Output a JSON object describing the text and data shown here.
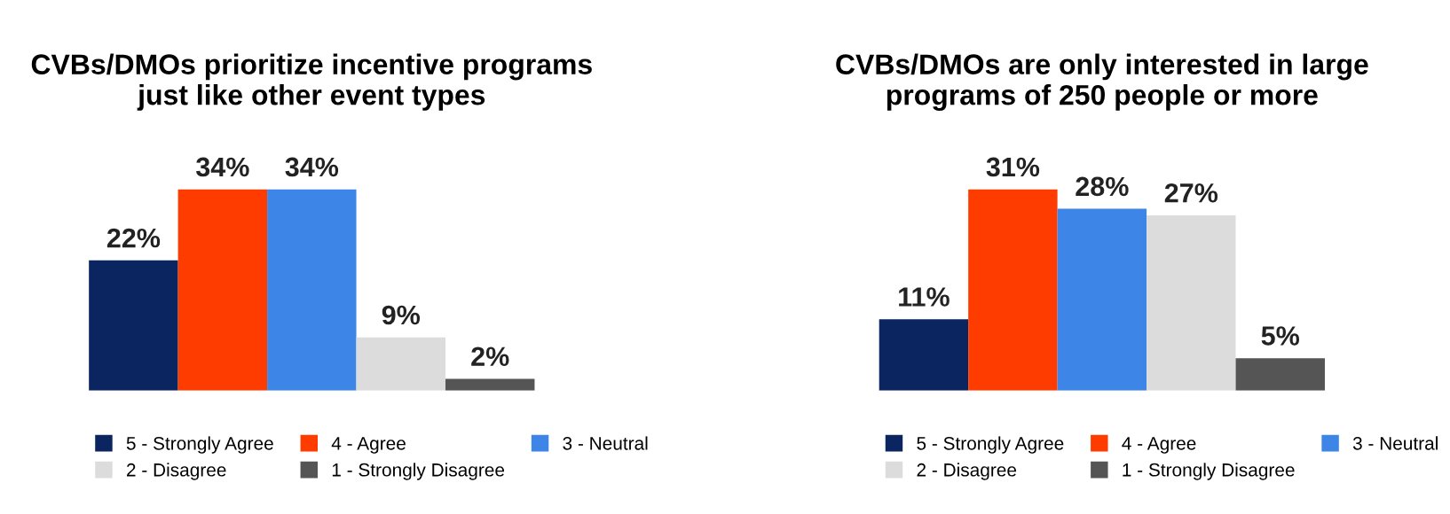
{
  "chart_data": [
    {
      "type": "bar",
      "title": "CVBs/DMOs prioritize incentive programs\njust like other event types",
      "categories": [
        null
      ],
      "legend": "bottom",
      "series": [
        {
          "name": "5 - Strongly Agree",
          "color": "#0b2561",
          "values": [
            22
          ],
          "value_labels": [
            "22%"
          ]
        },
        {
          "name": "4 - Agree",
          "color": "#ff3c00",
          "values": [
            34
          ],
          "value_labels": [
            "34%"
          ]
        },
        {
          "name": "3 - Neutral",
          "color": "#3d85e6",
          "values": [
            34
          ],
          "value_labels": [
            "34%"
          ]
        },
        {
          "name": "2 - Disagree",
          "color": "#dcdcdc",
          "values": [
            9
          ],
          "value_labels": [
            "9%"
          ]
        },
        {
          "name": "1 - Strongly Disagree",
          "color": "#555555",
          "values": [
            2
          ],
          "value_labels": [
            "2%"
          ]
        }
      ]
    },
    {
      "type": "bar",
      "title": "CVBs/DMOs are only interested in large\nprograms of 250 people or more",
      "categories": [
        null
      ],
      "legend": "bottom",
      "series": [
        {
          "name": "5 - Strongly Agree",
          "color": "#0b2561",
          "values": [
            11
          ],
          "value_labels": [
            "11%"
          ]
        },
        {
          "name": "4 - Agree",
          "color": "#ff3c00",
          "values": [
            31
          ],
          "value_labels": [
            "31%"
          ]
        },
        {
          "name": "3 - Neutral",
          "color": "#3d85e6",
          "values": [
            28
          ],
          "value_labels": [
            "28%"
          ]
        },
        {
          "name": "2 - Disagree",
          "color": "#dcdcdc",
          "values": [
            27
          ],
          "value_labels": [
            "27%"
          ]
        },
        {
          "name": "1 - Strongly Disagree",
          "color": "#555555",
          "values": [
            5
          ],
          "value_labels": [
            "5%"
          ]
        }
      ]
    }
  ]
}
